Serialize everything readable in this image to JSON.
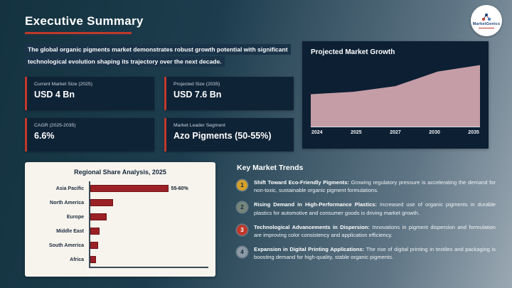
{
  "header": {
    "title": "Executive Summary",
    "intro": "The global organic pigments market demonstrates robust growth potential with significant technological evolution shaping its trajectory over the next decade."
  },
  "logo": {
    "brand": "MarketGenics"
  },
  "stats": [
    {
      "label": "Current Market Size (2025)",
      "value": "USD 4 Bn"
    },
    {
      "label": "Projected Size (2035)",
      "value": "USD 7.6 Bn"
    },
    {
      "label": "CAGR (2025-2035)",
      "value": "6.6%"
    },
    {
      "label": "Market Leader Segment",
      "value": "Azo Pigments (50-55%)"
    }
  ],
  "growth_chart": {
    "title": "Projected Market Growth",
    "x_labels": [
      "2024",
      "2025",
      "2027",
      "2030",
      "2035"
    ]
  },
  "regional_chart": {
    "title": "Regional Share Analysis, 2025",
    "categories": [
      "Asia Pacific",
      "North America",
      "Europe",
      "Middle East",
      "South America",
      "Africa"
    ],
    "leader_note": "55-60%"
  },
  "trends": {
    "title": "Key Market Trends",
    "items": [
      {
        "num": "1",
        "color": "#d4a02a",
        "number_color": "#152a3d",
        "bold": "Shift Toward Eco-Friendly Pigments:",
        "text": "Growing regulatory pressure is accelerating the demand for non-toxic, sustainable organic pigment formulations."
      },
      {
        "num": "2",
        "color": "#75857a",
        "number_color": "#152a3d",
        "bold": "Rising Demand in High-Performance Plastics:",
        "text": "Increased use of organic pigments in durable plastics for automotive and consumer goods is driving market growth."
      },
      {
        "num": "3",
        "color": "#c0392b",
        "number_color": "#ffffff",
        "bold": "Technological Advancements in Dispersion:",
        "text": "Innovations in pigment dispersion and formulation are improving color consistency and application efficiency."
      },
      {
        "num": "4",
        "color": "#8b99a4",
        "number_color": "#152a3d",
        "bold": "Expansion in Digital Printing Applications:",
        "text": "The rise of digital printing in textiles and packaging is boosting demand for high-quality, stable organic pigments."
      }
    ]
  },
  "colors": {
    "accent_red": "#c0392b",
    "card_navy": "#0f2336",
    "area_fill": "#c59da6",
    "bar_red": "#9b2127"
  },
  "chart_data": [
    {
      "type": "area",
      "title": "Projected Market Growth",
      "x": [
        2024,
        2025,
        2027,
        2030,
        2035
      ],
      "x_tick_labels": [
        "2024",
        "2025",
        "2027",
        "2030",
        "2035"
      ],
      "values": [
        4.0,
        4.3,
        5.0,
        6.8,
        7.6
      ],
      "unit": "USD Bn",
      "ylim": [
        0,
        8
      ],
      "grid": false,
      "legend": false
    },
    {
      "type": "bar",
      "orientation": "horizontal",
      "title": "Regional Share Analysis, 2025",
      "categories": [
        "Asia Pacific",
        "North America",
        "Europe",
        "Middle East",
        "South America",
        "Africa"
      ],
      "values": [
        57.5,
        17,
        12,
        7,
        6,
        4
      ],
      "unit": "%",
      "annotations": [
        {
          "category": "Asia Pacific",
          "label": "55-60%"
        }
      ]
    }
  ]
}
